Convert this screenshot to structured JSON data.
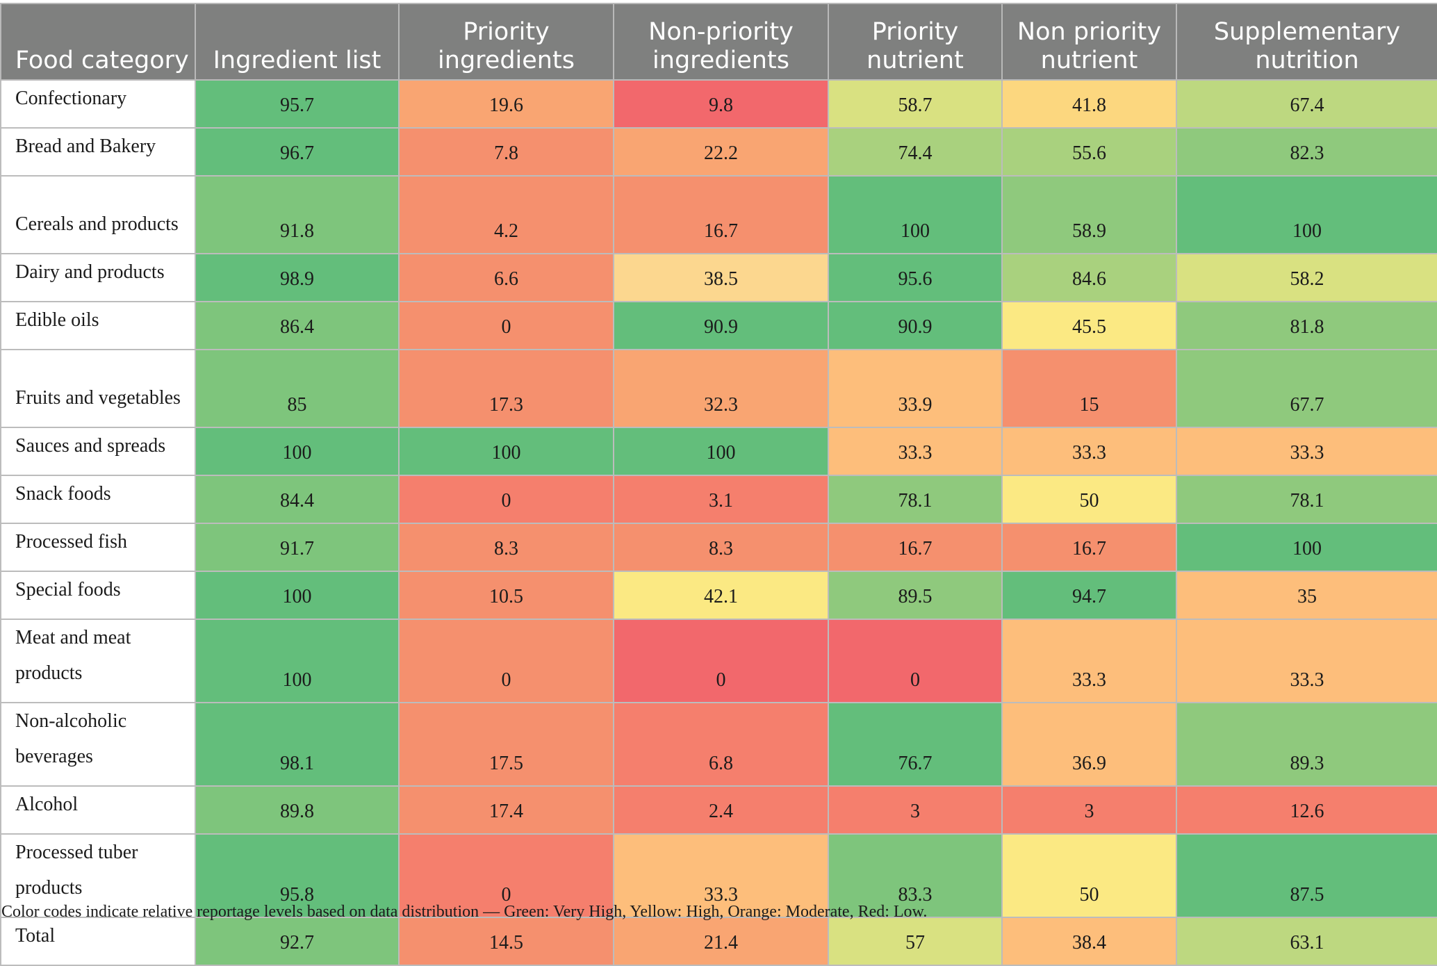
{
  "colors": {
    "header_bg": "#7f807f",
    "green_dark": "#63be7b",
    "green": "#7ec57c",
    "green_light": "#a9d17e",
    "yellow_green": "#bdd880",
    "yellow_olive": "#d9e181",
    "yellow": "#fbe983",
    "yellow_orange": "#fcd77f",
    "orange_light": "#fdbe7b",
    "orange": "#f9a572",
    "salmon": "#f5906e",
    "salmon_red": "#f57f6d",
    "red": "#f2686c"
  },
  "table": {
    "headers": [
      "Food category",
      "Ingredient list",
      "Priority ingredients",
      "Non-priority ingredients",
      "Priority nutrient",
      "Non priority nutrient",
      "Supplementary nutrition"
    ],
    "rows": [
      {
        "category": "Confectionary",
        "values": [
          "95.7",
          "19.6",
          "9.8",
          "58.7",
          "41.8",
          "67.4"
        ],
        "colors": [
          "#63be7b",
          "#f9a572",
          "#f2686c",
          "#d9e181",
          "#fcd77f",
          "#bdd880"
        ]
      },
      {
        "category": "Bread and Bakery",
        "values": [
          "96.7",
          "7.8",
          "22.2",
          "74.4",
          "55.6",
          "82.3"
        ],
        "colors": [
          "#63be7b",
          "#f5906e",
          "#f9a572",
          "#a9d17e",
          "#a9d17e",
          "#8fc97d"
        ]
      },
      {
        "category": "Cereals and products",
        "values": [
          "91.8",
          "4.2",
          "16.7",
          "100",
          "58.9",
          "100"
        ],
        "colors": [
          "#7ec57c",
          "#f5906e",
          "#f5906e",
          "#63be7b",
          "#8fc97d",
          "#63be7b"
        ]
      },
      {
        "category": "Dairy and products",
        "values": [
          "98.9",
          "6.6",
          "38.5",
          "95.6",
          "84.6",
          "58.2"
        ],
        "colors": [
          "#63be7b",
          "#f5906e",
          "#fcd78f",
          "#63be7b",
          "#a9d17e",
          "#d9e181"
        ]
      },
      {
        "category": "Edible oils",
        "values": [
          "86.4",
          "0",
          "90.9",
          "90.9",
          "45.5",
          "81.8"
        ],
        "colors": [
          "#7ec57c",
          "#f5906e",
          "#63be7b",
          "#63be7b",
          "#fbe983",
          "#8fc97d"
        ]
      },
      {
        "category": "Fruits and vegetables",
        "values": [
          "85",
          "17.3",
          "32.3",
          "33.9",
          "15",
          "67.7"
        ],
        "colors": [
          "#7ec57c",
          "#f5906e",
          "#f9a572",
          "#fdbe7b",
          "#f5906e",
          "#8fc97d"
        ]
      },
      {
        "category": "Sauces and spreads",
        "values": [
          "100",
          "100",
          "100",
          "33.3",
          "33.3",
          "33.3"
        ],
        "colors": [
          "#63be7b",
          "#63be7b",
          "#63be7b",
          "#fdbe7b",
          "#fdbe7b",
          "#fdbe7b"
        ]
      },
      {
        "category": "Snack foods",
        "values": [
          "84.4",
          "0",
          "3.1",
          "78.1",
          "50",
          "78.1"
        ],
        "colors": [
          "#7ec57c",
          "#f57f6d",
          "#f57f6d",
          "#8fc97d",
          "#fbe983",
          "#8fc97d"
        ]
      },
      {
        "category": "Processed fish",
        "values": [
          "91.7",
          "8.3",
          "8.3",
          "16.7",
          "16.7",
          "100"
        ],
        "colors": [
          "#7ec57c",
          "#f5906e",
          "#f5906e",
          "#f5906e",
          "#f5906e",
          "#63be7b"
        ]
      },
      {
        "category": "Special foods",
        "values": [
          "100",
          "10.5",
          "42.1",
          "89.5",
          "94.7",
          "35"
        ],
        "colors": [
          "#63be7b",
          "#f5906e",
          "#fbe983",
          "#8fc97d",
          "#63be7b",
          "#fdbe7b"
        ]
      },
      {
        "category": "Meat and meat products",
        "values": [
          "100",
          "0",
          "0",
          "0",
          "33.3",
          "33.3"
        ],
        "colors": [
          "#63be7b",
          "#f5906e",
          "#f2686c",
          "#f2686c",
          "#fdbe7b",
          "#fdbe7b"
        ]
      },
      {
        "category": "Non-alcoholic beverages",
        "values": [
          "98.1",
          "17.5",
          "6.8",
          "76.7",
          "36.9",
          "89.3"
        ],
        "colors": [
          "#63be7b",
          "#f5906e",
          "#f57f6d",
          "#63be7b",
          "#fdbe7b",
          "#8fc97d"
        ]
      },
      {
        "category": "Alcohol",
        "values": [
          "89.8",
          "17.4",
          "2.4",
          "3",
          "3",
          "12.6"
        ],
        "colors": [
          "#7ec57c",
          "#f5906e",
          "#f57f6d",
          "#f57f6d",
          "#f57f6d",
          "#f57f6d"
        ]
      },
      {
        "category": "Processed tuber products",
        "values": [
          "95.8",
          "0",
          "33.3",
          "83.3",
          "50",
          "87.5"
        ],
        "colors": [
          "#63be7b",
          "#f57f6d",
          "#fdbe7b",
          "#7ec57c",
          "#fbe983",
          "#63be7b"
        ]
      },
      {
        "category": "Total",
        "values": [
          "92.7",
          "14.5",
          "21.4",
          "57",
          "38.4",
          "63.1"
        ],
        "colors": [
          "#7ec57c",
          "#f5906e",
          "#f9a572",
          "#d9e181",
          "#fdbe7b",
          "#bdd880"
        ]
      }
    ]
  },
  "caption": "Color codes indicate relative reportage levels based on data distribution — Green: Very High, Yellow: High, Orange: Moderate, Red: Low."
}
